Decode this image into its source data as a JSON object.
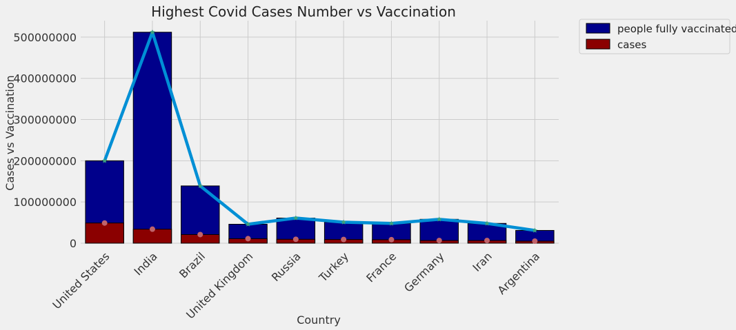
{
  "chart_data": {
    "type": "bar",
    "title": "Highest Covid Cases Number vs Vaccination",
    "xlabel": "Country",
    "ylabel": "Cases vs Vaccination",
    "categories": [
      "United States",
      "India",
      "Brazil",
      "United Kingdom",
      "Russia",
      "Turkey",
      "France",
      "Germany",
      "Iran",
      "Argentina"
    ],
    "ylim": [
      0,
      540000000
    ],
    "yticks": [
      0,
      100000000,
      200000000,
      300000000,
      400000000,
      500000000
    ],
    "ytick_labels": [
      "0",
      "100000000",
      "200000000",
      "300000000",
      "400000000",
      "500000000"
    ],
    "series": [
      {
        "name": "people fully vaccinated",
        "kind": "bar",
        "color": "#00008b",
        "values": [
          200000000,
          512000000,
          139000000,
          46000000,
          61000000,
          51000000,
          48000000,
          58000000,
          48000000,
          31000000
        ]
      },
      {
        "name": "cases",
        "kind": "bar",
        "color": "#8b0000",
        "values": [
          49000000,
          34000000,
          21000000,
          11000000,
          9500000,
          9000000,
          8500000,
          6500000,
          6500000,
          5000000
        ]
      },
      {
        "kind": "line",
        "color": "#008fd5",
        "marker": "star",
        "values": [
          200000000,
          512000000,
          139000000,
          46000000,
          61000000,
          51000000,
          48000000,
          58000000,
          48000000,
          31000000
        ]
      },
      {
        "kind": "scatter",
        "color": "#c0636a",
        "marker": "circle",
        "values": [
          49000000,
          34000000,
          21000000,
          11000000,
          9500000,
          9000000,
          8500000,
          6500000,
          6500000,
          5000000
        ]
      }
    ],
    "grid": true,
    "legend_position": "outside-top-right"
  }
}
